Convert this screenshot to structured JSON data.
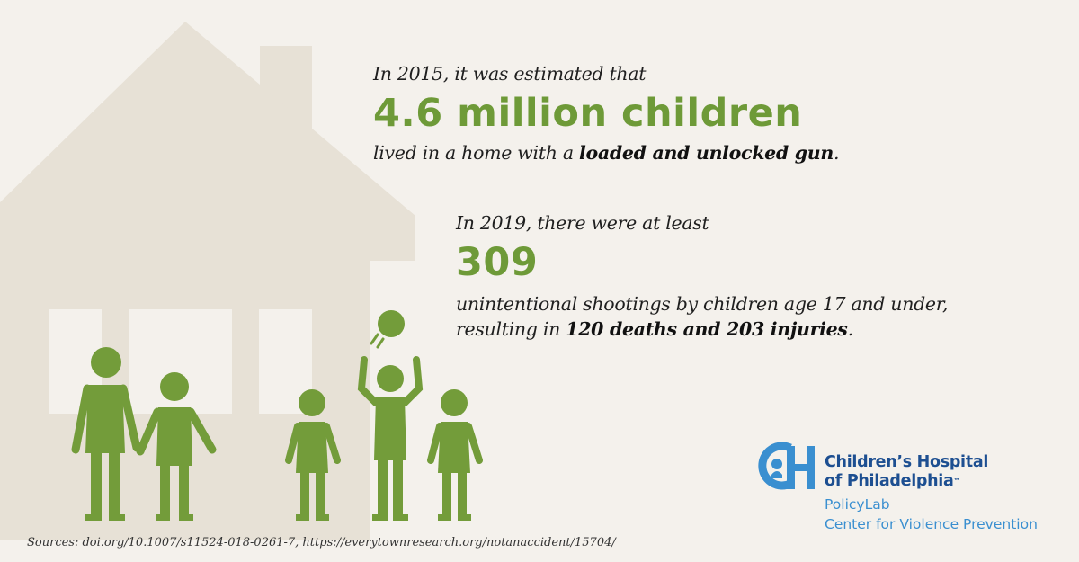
{
  "stat1": {
    "intro": "In 2015, it was estimated that",
    "highlight": "4.6 million children",
    "detail_prefix": "lived in a home with a ",
    "detail_emphasis": "loaded and unlocked gun",
    "detail_suffix": "."
  },
  "stat2": {
    "intro": "In 2019, there were at least",
    "highlight": "309",
    "detail_line1": "unintentional shootings by children age 17 and under,",
    "detail_prefix": "resulting in ",
    "detail_emphasis": "120 deaths and 203 injuries",
    "detail_suffix": "."
  },
  "logo": {
    "name_line1": "Children’s Hospital",
    "name_line2": "of Philadelphia",
    "trademark": "™",
    "sub_line1": "PolicyLab",
    "sub_line2": "Center for Violence Prevention"
  },
  "sources": "Sources: doi.org/10.1007/s11524-018-0261-7, https://everytownresearch.org/notanaccident/15704/",
  "icons": [
    "house-illustration",
    "family-figures-illustration",
    "ball-icon",
    "chop-logo-icon"
  ],
  "colors": {
    "background": "#f4f1ec",
    "house": "#e7e1d6",
    "accent_green": "#6e9a38",
    "logo_blue": "#1d4f91",
    "logo_light_blue": "#3a8fd0"
  }
}
